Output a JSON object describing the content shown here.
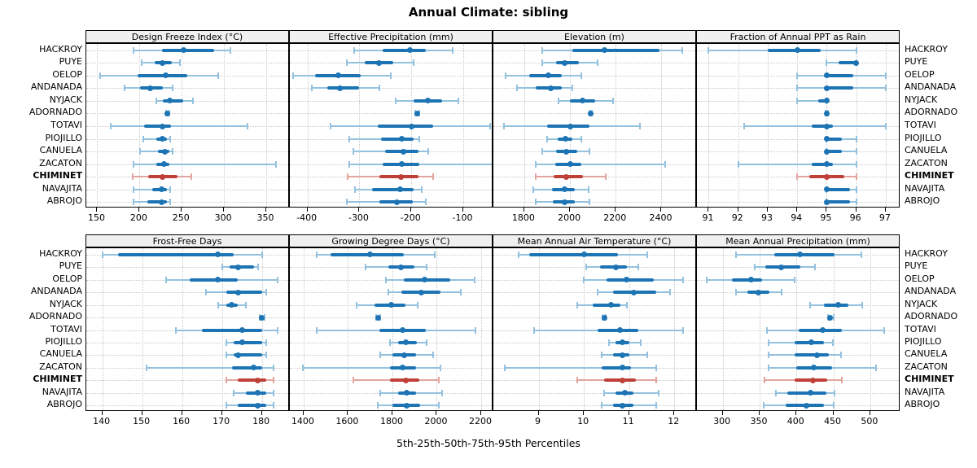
{
  "title": "Annual Climate: sibling",
  "caption": "5th-25th-50th-75th-95th Percentiles",
  "colors": {
    "series_main": "#1c74b4",
    "series_light": "#93c1de",
    "highlight_main": "#bf4036",
    "highlight_light": "#e2a59f",
    "grid": "#c9c9c9",
    "header_bg": "#f0f0f0",
    "border": "#000000"
  },
  "chart_data": {
    "type": "dotplot-percentiles",
    "percentile_labels": [
      "5th",
      "25th",
      "50th",
      "75th",
      "95th"
    ],
    "sites": [
      "HACKROY",
      "PUYE",
      "OELOP",
      "ANDANADA",
      "NYJACK",
      "ADORNADO",
      "TOTAVI",
      "PIOJILLO",
      "CANUELA",
      "ZACATON",
      "CHIMINET",
      "NAVAJITA",
      "ABROJO"
    ],
    "highlight_site": "CHIMINET",
    "legend_position": "none",
    "grid": "dotted",
    "panels": [
      {
        "title": "Design Freeze Index (°C)",
        "row": 0,
        "col": 0,
        "ticks": [
          150,
          200,
          250,
          300,
          350
        ],
        "domain": [
          137,
          378
        ],
        "values": [
          [
            193,
            227,
            252,
            288,
            308
          ],
          [
            203,
            218,
            227,
            238,
            248
          ],
          [
            153,
            198,
            231,
            257,
            293
          ],
          [
            182,
            201,
            213,
            228,
            239
          ],
          [
            220,
            228,
            236,
            252,
            263
          ],
          [
            231,
            232,
            233,
            234,
            235
          ],
          [
            166,
            205,
            227,
            237,
            328
          ],
          [
            204,
            220,
            227,
            232,
            236
          ],
          [
            201,
            222,
            230,
            235,
            239
          ],
          [
            193,
            220,
            229,
            235,
            362
          ],
          [
            192,
            210,
            227,
            245,
            261
          ],
          [
            193,
            215,
            226,
            232,
            236
          ],
          [
            193,
            209,
            226,
            232,
            236
          ]
        ]
      },
      {
        "title": "Effective Precipitation (mm)",
        "row": 0,
        "col": 1,
        "ticks": [
          -400,
          -300,
          -200,
          -100
        ],
        "domain": [
          -434,
          -42
        ],
        "values": [
          [
            -310,
            -255,
            -203,
            -172,
            -120
          ],
          [
            -325,
            -290,
            -262,
            -235,
            -195
          ],
          [
            -428,
            -385,
            -340,
            -298,
            -240
          ],
          [
            -392,
            -362,
            -338,
            -300,
            -262
          ],
          [
            -230,
            -196,
            -168,
            -140,
            -110
          ],
          [
            -193,
            -191,
            -189,
            -187,
            -185
          ],
          [
            -355,
            -265,
            -200,
            -158,
            -48
          ],
          [
            -320,
            -258,
            -218,
            -196,
            -184
          ],
          [
            -312,
            -250,
            -215,
            -186,
            -168
          ],
          [
            -320,
            -255,
            -218,
            -185,
            -38
          ],
          [
            -322,
            -262,
            -220,
            -186,
            -158
          ],
          [
            -308,
            -276,
            -222,
            -196,
            -180
          ],
          [
            -325,
            -262,
            -228,
            -198,
            -172
          ]
        ]
      },
      {
        "title": "Elevation (m)",
        "row": 0,
        "col": 2,
        "ticks": [
          1800,
          2000,
          2200,
          2400
        ],
        "domain": [
          1665,
          2555
        ],
        "values": [
          [
            1880,
            2010,
            2150,
            2390,
            2490
          ],
          [
            1880,
            1940,
            1975,
            2040,
            2120
          ],
          [
            1720,
            1820,
            1905,
            1965,
            2050
          ],
          [
            1770,
            1850,
            1915,
            1965,
            2010
          ],
          [
            1950,
            2000,
            2055,
            2110,
            2190
          ],
          [
            2084,
            2087,
            2090,
            2093,
            2096
          ],
          [
            1710,
            1900,
            2000,
            2085,
            2305
          ],
          [
            1900,
            1945,
            1980,
            2010,
            2050
          ],
          [
            1880,
            1940,
            1985,
            2030,
            2085
          ],
          [
            1850,
            1935,
            2000,
            2050,
            2415
          ],
          [
            1850,
            1930,
            1985,
            2055,
            2155
          ],
          [
            1840,
            1920,
            1975,
            2020,
            2080
          ],
          [
            1850,
            1925,
            1975,
            2020,
            2085
          ]
        ]
      },
      {
        "title": "Fraction of Annual PPT as Rain",
        "row": 0,
        "col": 3,
        "ticks": [
          91,
          92,
          93,
          94,
          95,
          96,
          97
        ],
        "domain": [
          90.6,
          97.5
        ],
        "values": [
          [
            91,
            93,
            94,
            94.8,
            96
          ],
          [
            95,
            95.4,
            96,
            96,
            96
          ],
          [
            94,
            94.9,
            95,
            95.9,
            97
          ],
          [
            94,
            94.9,
            95,
            95.9,
            97
          ],
          [
            94,
            94.7,
            95,
            95,
            95
          ],
          [
            94.95,
            95,
            95,
            95,
            95.05
          ],
          [
            92.2,
            94.5,
            95,
            95.2,
            97
          ],
          [
            95,
            95,
            95,
            95.5,
            96
          ],
          [
            95,
            95,
            95,
            95.5,
            96
          ],
          [
            92,
            94.5,
            95,
            95.2,
            96
          ],
          [
            94,
            94.4,
            95,
            95.6,
            96
          ],
          [
            95,
            95,
            95,
            95.8,
            96
          ],
          [
            95,
            95,
            95,
            95.8,
            96
          ]
        ]
      },
      {
        "title": "Frost-Free Days",
        "row": 1,
        "col": 0,
        "ticks": [
          140,
          150,
          160,
          170,
          180
        ],
        "domain": [
          136,
          187
        ],
        "values": [
          [
            140,
            144,
            169,
            173,
            180
          ],
          [
            170,
            172,
            174,
            178,
            179
          ],
          [
            156,
            162,
            169,
            174,
            184
          ],
          [
            166,
            171,
            174,
            180,
            181
          ],
          [
            169,
            171,
            172.5,
            174,
            176
          ],
          [
            179.5,
            179.8,
            180,
            180.3,
            180.6
          ],
          [
            158.5,
            165,
            175,
            180,
            184
          ],
          [
            171,
            173,
            175,
            180,
            181
          ],
          [
            171,
            173,
            174,
            180,
            181
          ],
          [
            151,
            172.5,
            178,
            180,
            183
          ],
          [
            171,
            174,
            179,
            181,
            183
          ],
          [
            173,
            176,
            179,
            181,
            183
          ],
          [
            171,
            174,
            179,
            181,
            183
          ]
        ]
      },
      {
        "title": "Growing Degree Days (°C)",
        "row": 1,
        "col": 1,
        "ticks": [
          1400,
          1600,
          1800,
          2000,
          2200
        ],
        "domain": [
          1338,
          2255
        ],
        "values": [
          [
            1460,
            1520,
            1700,
            1850,
            1990
          ],
          [
            1680,
            1780,
            1840,
            1900,
            1955
          ],
          [
            1770,
            1850,
            1945,
            2060,
            2170
          ],
          [
            1780,
            1840,
            1930,
            2015,
            2110
          ],
          [
            1640,
            1720,
            1795,
            1860,
            1915
          ],
          [
            1728,
            1732,
            1736,
            1740,
            1744
          ],
          [
            1460,
            1740,
            1845,
            1950,
            2175
          ],
          [
            1790,
            1825,
            1860,
            1910,
            1955
          ],
          [
            1745,
            1800,
            1855,
            1905,
            1985
          ],
          [
            1395,
            1790,
            1845,
            1905,
            2015
          ],
          [
            1625,
            1790,
            1860,
            1920,
            2010
          ],
          [
            1745,
            1825,
            1865,
            1905,
            2025
          ],
          [
            1735,
            1800,
            1865,
            1925,
            2010
          ]
        ]
      },
      {
        "title": "Mean Annual Air Temperature (°C)",
        "row": 1,
        "col": 2,
        "ticks": [
          9,
          10,
          11,
          12
        ],
        "domain": [
          8.0,
          12.5
        ],
        "values": [
          [
            8.55,
            8.8,
            10.0,
            10.75,
            11.4
          ],
          [
            10.05,
            10.35,
            10.7,
            10.95,
            11.2
          ],
          [
            10.0,
            10.5,
            10.95,
            11.55,
            12.2
          ],
          [
            10.3,
            10.65,
            11.1,
            11.6,
            11.9
          ],
          [
            9.85,
            10.2,
            10.6,
            10.8,
            10.95
          ],
          [
            10.41,
            10.43,
            10.45,
            10.47,
            10.49
          ],
          [
            8.9,
            10.3,
            10.8,
            11.2,
            12.2
          ],
          [
            10.55,
            10.7,
            10.85,
            11.0,
            11.25
          ],
          [
            10.4,
            10.65,
            10.85,
            11.0,
            11.4
          ],
          [
            8.25,
            10.4,
            10.85,
            11.05,
            11.6
          ],
          [
            9.85,
            10.45,
            10.85,
            11.15,
            11.6
          ],
          [
            10.45,
            10.7,
            10.9,
            11.1,
            11.65
          ],
          [
            10.4,
            10.65,
            10.85,
            11.1,
            11.6
          ]
        ]
      },
      {
        "title": "Mean Annual Precipitation (mm)",
        "row": 1,
        "col": 3,
        "ticks": [
          300,
          350,
          400,
          450,
          500
        ],
        "domain": [
          265,
          541
        ],
        "values": [
          [
            318,
            370,
            405,
            452,
            488
          ],
          [
            343,
            358,
            379,
            405,
            425
          ],
          [
            278,
            312,
            338,
            353,
            397
          ],
          [
            318,
            333,
            348,
            363,
            380
          ],
          [
            418,
            437,
            457,
            470,
            489
          ],
          [
            443,
            445,
            446,
            448,
            450
          ],
          [
            360,
            403,
            436,
            461,
            519
          ],
          [
            362,
            398,
            420,
            437,
            449
          ],
          [
            362,
            398,
            428,
            444,
            460
          ],
          [
            362,
            400,
            423,
            448,
            508
          ],
          [
            357,
            397,
            422,
            442,
            462
          ],
          [
            372,
            388,
            419,
            440,
            452
          ],
          [
            355,
            385,
            414,
            437,
            450
          ]
        ]
      }
    ]
  }
}
